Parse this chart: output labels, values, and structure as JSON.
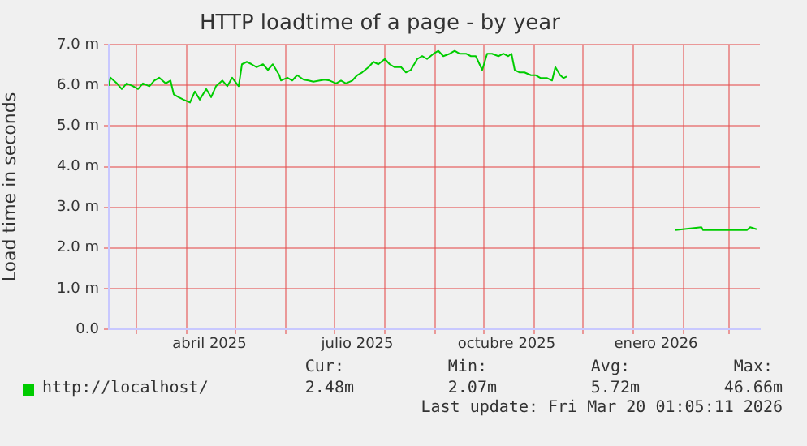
{
  "chart_data": {
    "type": "line",
    "title": "HTTP loadtime of a page - by year",
    "ylabel": "Load time in seconds",
    "xlim": [
      "2025-02-12",
      "2026-03-20"
    ],
    "xticks": [
      {
        "value": "2025-03-01",
        "label": null
      },
      {
        "value": "2025-04-01",
        "label": null
      },
      {
        "value": "2025-04-15",
        "label": "abril 2025"
      },
      {
        "value": "2025-05-01",
        "label": null
      },
      {
        "value": "2025-06-01",
        "label": null
      },
      {
        "value": "2025-07-01",
        "label": null
      },
      {
        "value": "2025-07-15",
        "label": "julio 2025"
      },
      {
        "value": "2025-08-01",
        "label": null
      },
      {
        "value": "2025-09-01",
        "label": null
      },
      {
        "value": "2025-10-01",
        "label": null
      },
      {
        "value": "2025-10-15",
        "label": "octubre 2025"
      },
      {
        "value": "2025-11-01",
        "label": null
      },
      {
        "value": "2025-12-01",
        "label": null
      },
      {
        "value": "2026-01-01",
        "label": null
      },
      {
        "value": "2026-01-15",
        "label": "enero 2026"
      },
      {
        "value": "2026-02-01",
        "label": null
      },
      {
        "value": "2026-03-01",
        "label": null
      }
    ],
    "ylim": [
      0,
      7
    ],
    "yticks": [
      {
        "value": 0,
        "label": "0.0"
      },
      {
        "value": 1,
        "label": "1.0 m"
      },
      {
        "value": 2,
        "label": "2.0 m"
      },
      {
        "value": 3,
        "label": "3.0 m"
      },
      {
        "value": 4,
        "label": "4.0 m"
      },
      {
        "value": 5,
        "label": "5.0 m"
      },
      {
        "value": 6,
        "label": "6.0 m"
      },
      {
        "value": 7,
        "label": "7.0 m"
      }
    ],
    "grid": true,
    "legend": "bottom",
    "marker": "none",
    "line_style": "solid",
    "series": [
      {
        "name": "http://localhost/",
        "color": "#00cc00",
        "x": [
          "2025-02-12",
          "2025-02-13",
          "2025-02-17",
          "2025-02-20",
          "2025-02-23",
          "2025-02-27",
          "2025-03-02",
          "2025-03-05",
          "2025-03-09",
          "2025-03-12",
          "2025-03-15",
          "2025-03-19",
          "2025-03-22",
          "2025-03-24",
          "2025-03-27",
          "2025-03-30",
          "2025-04-03",
          "2025-04-06",
          "2025-04-09",
          "2025-04-13",
          "2025-04-16",
          "2025-04-19",
          "2025-04-23",
          "2025-04-26",
          "2025-04-29",
          "2025-05-03",
          "2025-05-05",
          "2025-05-08",
          "2025-05-11",
          "2025-05-14",
          "2025-05-18",
          "2025-05-21",
          "2025-05-24",
          "2025-05-28",
          "2025-05-29",
          "2025-06-02",
          "2025-06-05",
          "2025-06-08",
          "2025-06-12",
          "2025-06-15",
          "2025-06-18",
          "2025-06-22",
          "2025-06-25",
          "2025-06-28",
          "2025-07-02",
          "2025-07-05",
          "2025-07-08",
          "2025-07-12",
          "2025-07-15",
          "2025-07-18",
          "2025-07-22",
          "2025-07-25",
          "2025-07-28",
          "2025-08-01",
          "2025-08-04",
          "2025-08-07",
          "2025-08-11",
          "2025-08-14",
          "2025-08-17",
          "2025-08-21",
          "2025-08-24",
          "2025-08-27",
          "2025-08-31",
          "2025-09-03",
          "2025-09-06",
          "2025-09-10",
          "2025-09-13",
          "2025-09-16",
          "2025-09-20",
          "2025-09-23",
          "2025-09-26",
          "2025-09-30",
          "2025-10-03",
          "2025-10-06",
          "2025-10-10",
          "2025-10-13",
          "2025-10-16",
          "2025-10-18",
          "2025-10-20",
          "2025-10-23",
          "2025-10-26",
          "2025-10-30",
          "2025-11-02",
          "2025-11-05",
          "2025-11-09",
          "2025-11-12",
          "2025-11-14",
          "2025-11-17",
          "2025-11-19",
          "2025-11-21",
          "2025-12-20",
          "2026-01-27",
          "2026-02-12",
          "2026-02-13",
          "2026-02-20",
          "2026-03-12",
          "2026-03-14",
          "2026-03-18"
        ],
        "values": [
          5.99,
          6.19,
          6.05,
          5.91,
          6.05,
          5.98,
          5.91,
          6.05,
          5.98,
          6.12,
          6.19,
          6.05,
          6.12,
          5.78,
          5.71,
          5.65,
          5.58,
          5.85,
          5.65,
          5.91,
          5.71,
          5.98,
          6.12,
          5.98,
          6.19,
          5.98,
          6.52,
          6.58,
          6.52,
          6.45,
          6.52,
          6.38,
          6.52,
          6.25,
          6.12,
          6.19,
          6.12,
          6.25,
          6.14,
          6.12,
          6.09,
          6.12,
          6.14,
          6.12,
          6.05,
          6.12,
          6.05,
          6.12,
          6.25,
          6.32,
          6.45,
          6.58,
          6.52,
          6.65,
          6.52,
          6.45,
          6.45,
          6.32,
          6.38,
          6.65,
          6.72,
          6.65,
          6.78,
          6.85,
          6.72,
          6.78,
          6.85,
          6.78,
          6.78,
          6.72,
          6.72,
          6.38,
          6.78,
          6.78,
          6.72,
          6.78,
          6.72,
          6.78,
          6.38,
          6.32,
          6.32,
          6.25,
          6.25,
          6.18,
          6.18,
          6.12,
          6.45,
          6.25,
          6.18,
          6.22,
          null,
          2.44,
          2.51,
          2.44,
          2.44,
          2.44,
          2.51,
          2.46
        ]
      }
    ],
    "annotations": [
      "Cur:",
      "Min:",
      "Avg:",
      "Max:",
      "2.48m",
      "2.07m",
      "5.72m",
      "46.66m",
      "Last update: Fri Mar 20 01:05:11 2026"
    ]
  }
}
